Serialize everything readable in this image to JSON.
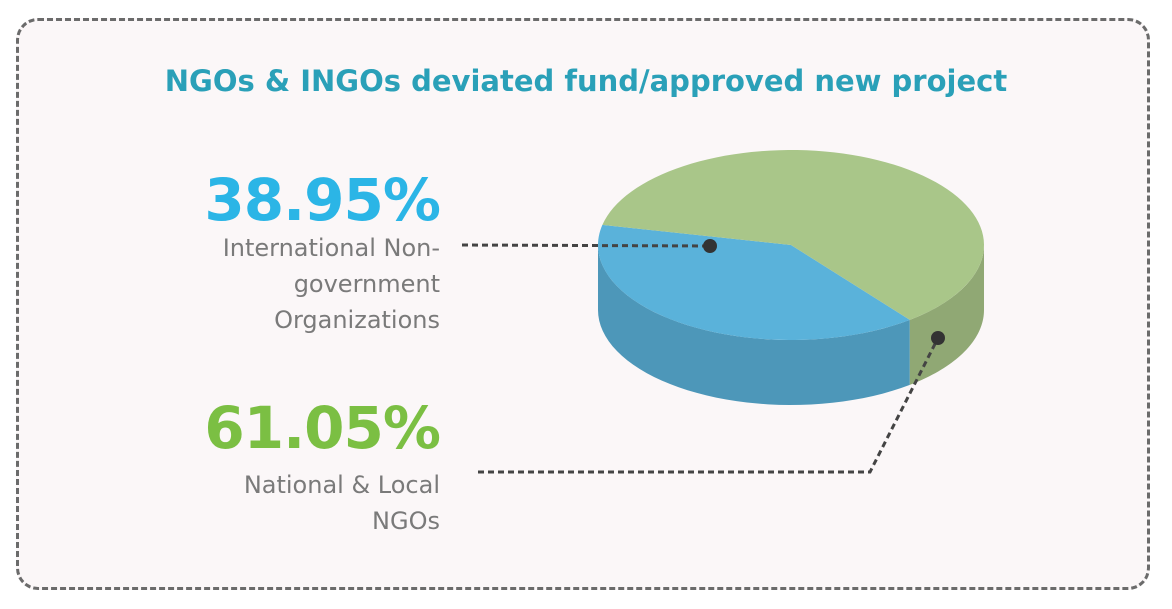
{
  "chart_data": {
    "type": "pie",
    "title": "NGOs & INGOs deviated fund/approved new project",
    "categories": [
      "International Non-government Organizations",
      "National & Local NGOs"
    ],
    "values": [
      38.95,
      61.05
    ],
    "value_labels": [
      "38.95%",
      "61.05%"
    ],
    "colors": [
      "#5ab2da",
      "#a9c689"
    ],
    "label_colors": [
      "#2bb5e6",
      "#7bbf43"
    ]
  }
}
